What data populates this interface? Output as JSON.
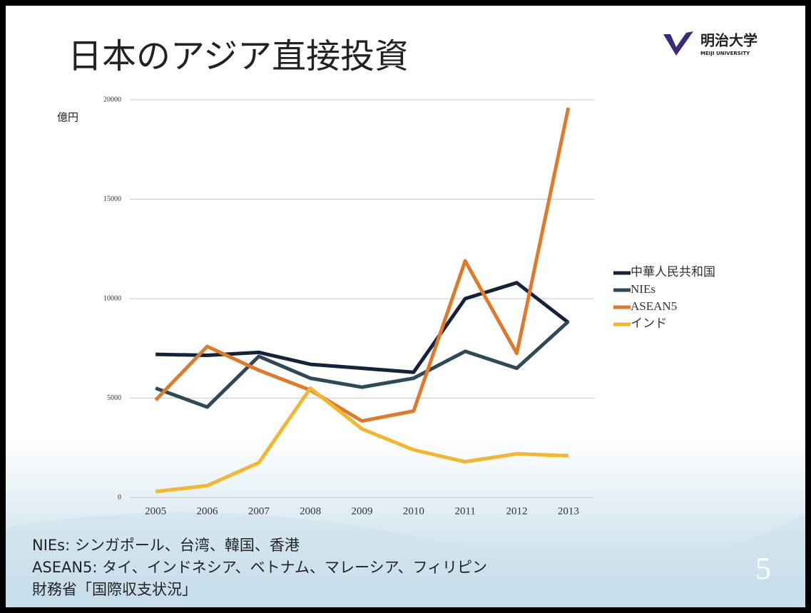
{
  "chart_data": {
    "type": "line",
    "title": "日本のアジア直接投資",
    "y_label": "億円",
    "categories": [
      "2005",
      "2006",
      "2007",
      "2008",
      "2009",
      "2010",
      "2011",
      "2012",
      "2013"
    ],
    "series": [
      {
        "name": "中華人民共和国",
        "color": "#14223a",
        "values": [
          7200,
          7150,
          7300,
          6700,
          6500,
          6300,
          10000,
          10800,
          8800
        ]
      },
      {
        "name": "NIEs",
        "color": "#2d4a56",
        "values": [
          5500,
          4550,
          7100,
          6000,
          5550,
          6000,
          7350,
          6500,
          8850
        ]
      },
      {
        "name": "ASEAN5",
        "color": "#e07a2b",
        "values": [
          4900,
          7600,
          6400,
          5400,
          3850,
          4350,
          11900,
          7250,
          19600
        ]
      },
      {
        "name": "インド",
        "color": "#f4b62c",
        "values": [
          300,
          600,
          1750,
          5500,
          3450,
          2400,
          1800,
          2200,
          2100
        ]
      }
    ],
    "ylim": [
      0,
      20000
    ],
    "yticks": [
      0,
      5000,
      10000,
      15000,
      20000
    ],
    "grid": true,
    "legend": "right"
  },
  "slide": {
    "logo_name": "明治大学",
    "logo_sub": "MEIJI UNIVERSITY",
    "footnotes": [
      "NIEs: シンガポール、台湾、韓国、香港",
      "ASEAN5: タイ、インドネシア、ベトナム、マレーシア、フィリピン",
      "財務省「国際収支状況」"
    ],
    "page_number": "5"
  }
}
